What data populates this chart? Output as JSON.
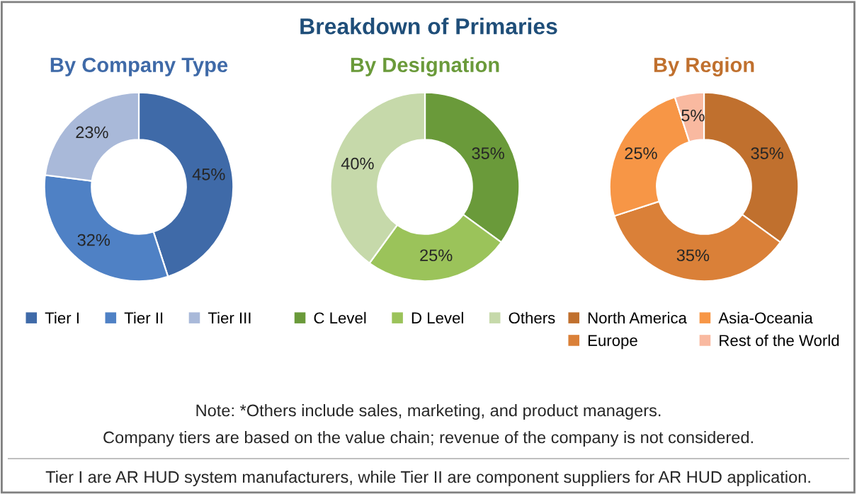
{
  "chart_data": [
    {
      "type": "donut",
      "title": "By Company Type",
      "categories": [
        "Tier I",
        "Tier II",
        "Tier III"
      ],
      "values": [
        45,
        32,
        23
      ],
      "colors": [
        "#3f6aa8",
        "#4f81c5",
        "#a9b9d9"
      ],
      "value_labels": [
        "45%",
        "32%",
        "23%"
      ],
      "legend": "bottom"
    },
    {
      "type": "donut",
      "title": "By Designation",
      "categories": [
        "C Level",
        "D Level",
        "Others"
      ],
      "values": [
        35,
        25,
        40
      ],
      "colors": [
        "#6a9a3a",
        "#9bc35a",
        "#c6d9aa"
      ],
      "value_labels": [
        "35%",
        "25%",
        "40%"
      ],
      "legend": "bottom"
    },
    {
      "type": "donut",
      "title": "By Region",
      "categories": [
        "North America",
        "Europe",
        "Asia-Oceania",
        "Rest of the World"
      ],
      "values": [
        35,
        35,
        25,
        5
      ],
      "colors": [
        "#c0702e",
        "#da8038",
        "#f79646",
        "#f9b9a0"
      ],
      "value_labels": [
        "35%",
        "35%",
        "25%",
        "5%"
      ],
      "legend": "bottom"
    },
    {
      "type": "other",
      "title": "Breakdown of Primaries",
      "annotations": [
        "Note: *Others include sales, marketing, and product managers.",
        "Company tiers are based on the value chain; revenue of the company is not considered.",
        "Tier I are AR HUD system manufacturers, while Tier II are component suppliers for AR HUD application."
      ]
    }
  ]
}
